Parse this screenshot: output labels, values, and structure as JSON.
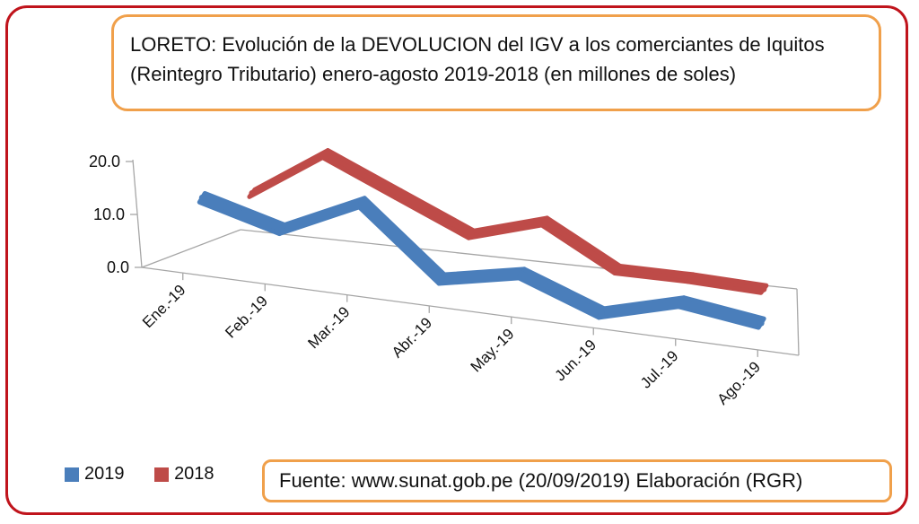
{
  "title": {
    "line1": "LORETO: Evolución de la DEVOLUCION del IGV a los comerciantes de Iquitos",
    "line2": "(Reintegro Tributario) enero-agosto 2019-2018 (en millones de soles)"
  },
  "source": "Fuente: www.sunat.gob.pe (20/09/2019)   Elaboración (RGR)",
  "colors": {
    "s2019": "#4a7ebb",
    "s2018": "#be4b48",
    "frame": "#c0141c",
    "box": "#f0a04b",
    "axis": "#a6a6a6"
  },
  "chart_data": {
    "type": "line",
    "style": "3d-ribbon",
    "categories": [
      "Ene.-19",
      "Feb.-19",
      "Mar.-19",
      "Abr.-19",
      "May.-19",
      "Jun.-19",
      "Jul.-19",
      "Ago.-19"
    ],
    "series": [
      {
        "name": "2019",
        "values": [
          12.0,
          8.0,
          15.0,
          2.5,
          5.5,
          0.0,
          4.0,
          2.0
        ]
      },
      {
        "name": "2018",
        "values": [
          9.0,
          18.0,
          12.0,
          6.0,
          10.0,
          2.5,
          2.5,
          2.0
        ]
      }
    ],
    "yticks": [
      "0.0",
      "10.0",
      "20.0"
    ],
    "ylim": [
      0,
      20
    ],
    "legend": "bottom-left",
    "grid": false
  }
}
